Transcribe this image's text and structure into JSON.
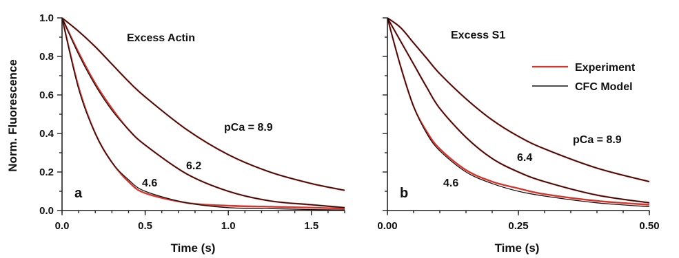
{
  "figure": {
    "ylabel": "Norm. Fluorescence",
    "legend": {
      "experiment": "Experiment",
      "model": "CFC Model"
    },
    "colors": {
      "experiment": "#d9342b",
      "model": "#111111"
    }
  },
  "chart_data": [
    {
      "type": "line",
      "panel_label": "a",
      "title": "Excess Actin",
      "xlabel": "Time (s)",
      "ylabel": "Norm. Fluorescence",
      "xlim": [
        0,
        1.7
      ],
      "ylim": [
        0,
        1.0
      ],
      "xticks": [
        0.0,
        0.5,
        1.0,
        1.5
      ],
      "xtick_labels": [
        "0.0",
        "0.5",
        "1.0",
        "1.5"
      ],
      "yticks": [
        0.0,
        0.2,
        0.4,
        0.6,
        0.8,
        1.0
      ],
      "ytick_labels": [
        "0.0",
        "0.2",
        "0.4",
        "0.6",
        "0.8",
        "1.0"
      ],
      "series": [
        {
          "name": "Experiment",
          "curve": "4.6",
          "x": [
            0,
            0.1,
            0.2,
            0.3,
            0.4,
            0.5,
            0.75,
            1.0,
            1.25,
            1.5,
            1.7
          ],
          "y": [
            1.0,
            0.64,
            0.4,
            0.25,
            0.15,
            0.09,
            0.04,
            0.025,
            0.02,
            0.015,
            0.01
          ]
        },
        {
          "name": "CFC Model",
          "curve": "4.6",
          "x": [
            0,
            0.1,
            0.2,
            0.3,
            0.4,
            0.5,
            0.75,
            1.0,
            1.25,
            1.5,
            1.7
          ],
          "y": [
            1.0,
            0.63,
            0.4,
            0.25,
            0.16,
            0.1,
            0.04,
            0.015,
            0.01,
            0.005,
            0.003
          ]
        },
        {
          "name": "Experiment",
          "curve": "6.2",
          "x": [
            0,
            0.1,
            0.2,
            0.3,
            0.4,
            0.5,
            0.75,
            1.0,
            1.25,
            1.5,
            1.7
          ],
          "y": [
            1.0,
            0.82,
            0.66,
            0.53,
            0.42,
            0.34,
            0.19,
            0.1,
            0.05,
            0.03,
            0.015
          ]
        },
        {
          "name": "CFC Model",
          "curve": "6.2",
          "x": [
            0,
            0.1,
            0.2,
            0.3,
            0.4,
            0.5,
            0.75,
            1.0,
            1.25,
            1.5,
            1.7
          ],
          "y": [
            1.0,
            0.81,
            0.65,
            0.52,
            0.42,
            0.34,
            0.19,
            0.1,
            0.05,
            0.03,
            0.015
          ]
        },
        {
          "name": "Experiment",
          "curve": "8.9",
          "x": [
            0,
            0.1,
            0.2,
            0.3,
            0.4,
            0.5,
            0.75,
            1.0,
            1.25,
            1.5,
            1.7
          ],
          "y": [
            1.0,
            0.93,
            0.85,
            0.76,
            0.67,
            0.59,
            0.42,
            0.29,
            0.2,
            0.14,
            0.105
          ]
        },
        {
          "name": "CFC Model",
          "curve": "8.9",
          "x": [
            0,
            0.1,
            0.2,
            0.3,
            0.4,
            0.5,
            0.75,
            1.0,
            1.25,
            1.5,
            1.7
          ],
          "y": [
            1.0,
            0.93,
            0.85,
            0.76,
            0.67,
            0.59,
            0.42,
            0.29,
            0.2,
            0.14,
            0.105
          ]
        }
      ],
      "annotations": [
        "pCa = 8.9",
        "6.2",
        "4.6"
      ]
    },
    {
      "type": "line",
      "panel_label": "b",
      "title": "Excess S1",
      "xlabel": "Time (s)",
      "xlim": [
        0,
        0.5
      ],
      "ylim": [
        0,
        1.0
      ],
      "xticks": [
        0.0,
        0.25,
        0.5
      ],
      "xtick_labels": [
        "0.00",
        "0.25",
        "0.50"
      ],
      "series": [
        {
          "name": "Experiment",
          "curve": "4.6",
          "x": [
            0,
            0.025,
            0.05,
            0.075,
            0.1,
            0.15,
            0.2,
            0.25,
            0.3,
            0.4,
            0.5
          ],
          "y": [
            1.0,
            0.75,
            0.54,
            0.41,
            0.32,
            0.21,
            0.15,
            0.115,
            0.085,
            0.05,
            0.03
          ]
        },
        {
          "name": "CFC Model",
          "curve": "4.6",
          "x": [
            0,
            0.025,
            0.05,
            0.075,
            0.1,
            0.15,
            0.2,
            0.25,
            0.3,
            0.4,
            0.5
          ],
          "y": [
            1.0,
            0.75,
            0.54,
            0.4,
            0.31,
            0.2,
            0.14,
            0.1,
            0.075,
            0.04,
            0.02
          ]
        },
        {
          "name": "Experiment",
          "curve": "6.4",
          "x": [
            0,
            0.025,
            0.05,
            0.075,
            0.1,
            0.15,
            0.2,
            0.25,
            0.3,
            0.4,
            0.5
          ],
          "y": [
            1.0,
            0.88,
            0.76,
            0.64,
            0.53,
            0.38,
            0.27,
            0.2,
            0.15,
            0.08,
            0.04
          ]
        },
        {
          "name": "CFC Model",
          "curve": "6.4",
          "x": [
            0,
            0.025,
            0.05,
            0.075,
            0.1,
            0.15,
            0.2,
            0.25,
            0.3,
            0.4,
            0.5
          ],
          "y": [
            1.0,
            0.88,
            0.76,
            0.64,
            0.53,
            0.38,
            0.27,
            0.2,
            0.15,
            0.08,
            0.04
          ]
        },
        {
          "name": "Experiment",
          "curve": "8.9",
          "x": [
            0,
            0.025,
            0.05,
            0.075,
            0.1,
            0.15,
            0.2,
            0.25,
            0.3,
            0.4,
            0.5
          ],
          "y": [
            1.0,
            0.95,
            0.87,
            0.79,
            0.71,
            0.58,
            0.47,
            0.385,
            0.32,
            0.22,
            0.15
          ]
        },
        {
          "name": "CFC Model",
          "curve": "8.9",
          "x": [
            0,
            0.025,
            0.05,
            0.075,
            0.1,
            0.15,
            0.2,
            0.25,
            0.3,
            0.4,
            0.5
          ],
          "y": [
            1.0,
            0.95,
            0.87,
            0.79,
            0.71,
            0.58,
            0.47,
            0.385,
            0.32,
            0.22,
            0.15
          ]
        }
      ],
      "annotations": [
        "pCa = 8.9",
        "6.4",
        "4.6"
      ],
      "legend": [
        "Experiment",
        "CFC Model"
      ],
      "legend_position": "top-right"
    }
  ]
}
